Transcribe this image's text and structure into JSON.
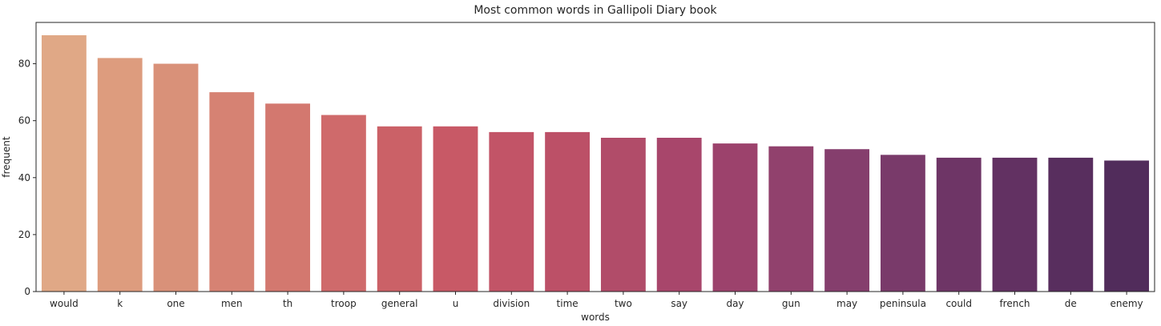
{
  "chart_data": {
    "type": "bar",
    "title": "Most common words in Gallipoli Diary book",
    "xlabel": "words",
    "ylabel": "frequent",
    "categories": [
      "would",
      "k",
      "one",
      "men",
      "th",
      "troop",
      "general",
      "u",
      "division",
      "time",
      "two",
      "say",
      "day",
      "gun",
      "may",
      "peninsula",
      "could",
      "french",
      "de",
      "enemy"
    ],
    "values": [
      90,
      82,
      80,
      70,
      66,
      62,
      58,
      58,
      56,
      56,
      54,
      54,
      52,
      51,
      50,
      48,
      47,
      47,
      47,
      46
    ],
    "ylim": [
      0,
      94.5
    ],
    "yticks": [
      "0",
      "20",
      "40",
      "60",
      "80"
    ],
    "grid": false,
    "colors": [
      "#e0a886",
      "#dd9c7e",
      "#d99179",
      "#d68273",
      "#d3786f",
      "#cf6a6b",
      "#cb6167",
      "#c85966",
      "#c25467",
      "#bc5067",
      "#b14c69",
      "#a8466b",
      "#9c426c",
      "#91416d",
      "#853e6d",
      "#793a6a",
      "#6e3566",
      "#623162",
      "#582e5e",
      "#512c5b"
    ]
  }
}
